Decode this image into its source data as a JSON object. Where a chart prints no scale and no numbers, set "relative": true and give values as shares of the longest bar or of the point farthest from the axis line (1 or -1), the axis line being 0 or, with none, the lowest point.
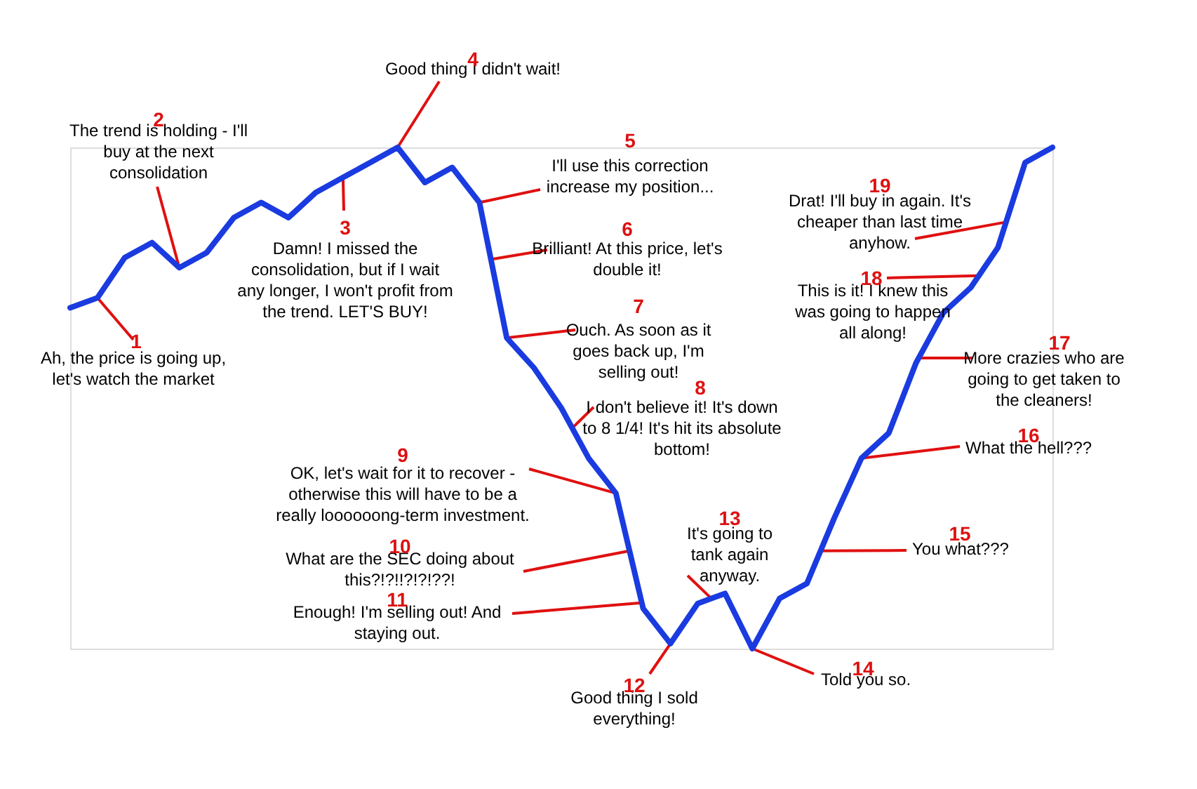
{
  "chart_data": {
    "type": "line",
    "relative": true,
    "categories": [
      null,
      null,
      null,
      null,
      null,
      null,
      null,
      null,
      null,
      null,
      null,
      null,
      null,
      null,
      null,
      null,
      null,
      null,
      null,
      null,
      null,
      null,
      null,
      null,
      null,
      null,
      null,
      null,
      null,
      null,
      null,
      null,
      null,
      null,
      null,
      null,
      null
    ],
    "series": [
      {
        "color": "#1a3be0",
        "values": [
          0.68,
          0.7,
          0.78,
          0.81,
          0.76,
          0.79,
          0.86,
          0.89,
          0.86,
          0.91,
          0.94,
          0.97,
          1.0,
          0.93,
          0.96,
          0.89,
          0.62,
          0.56,
          0.48,
          0.38,
          0.31,
          0.08,
          0.01,
          0.09,
          0.11,
          0,
          0.1,
          0.13,
          0.26,
          0.38,
          0.43,
          0.57,
          0.67,
          0.72,
          0.8,
          0.97,
          1.0
        ]
      }
    ],
    "annotations": [
      "1",
      "Ah, the price is going up,\nlet's watch the market",
      "2",
      "The trend is holding - I'll\nbuy at the next\nconsolidation",
      "3",
      "Damn! I missed the\nconsolidation, but if I wait\nany longer, I won't profit from\nthe trend. LET'S BUY!",
      "4",
      "Good thing I didn't wait!",
      "5",
      "I'll use this correction\nincrease my position...",
      "6",
      "Brilliant! At this price, let's\ndouble it!",
      "7",
      "Ouch. As soon as it\ngoes back up, I'm\nselling out!",
      "8",
      "I don't believe it! It's down\nto 8 1/4! It's hit its absolute\nbottom!",
      "9",
      "OK, let's wait for it to recover -\notherwise this will have to be a\nreally loooooong-term investment.",
      "10",
      "What are the SEC doing about\nthis?!?!!?!?!??!",
      "11",
      "Enough! I'm selling out! And\nstaying out.",
      "12",
      "Good thing I sold\neverything!",
      "13",
      "It's going to\ntank again\nanyway.",
      "14",
      "Told you so.",
      "15",
      "You what???",
      "16",
      "What the hell???",
      "17",
      "More crazies who are\ngoing to get taken to\nthe cleaners!",
      "18",
      "This is it! I knew this\nwas going to happen\nall along!",
      "19",
      "Drat! I'll buy in again. It's\ncheaper than last time\nanyhow."
    ]
  }
}
